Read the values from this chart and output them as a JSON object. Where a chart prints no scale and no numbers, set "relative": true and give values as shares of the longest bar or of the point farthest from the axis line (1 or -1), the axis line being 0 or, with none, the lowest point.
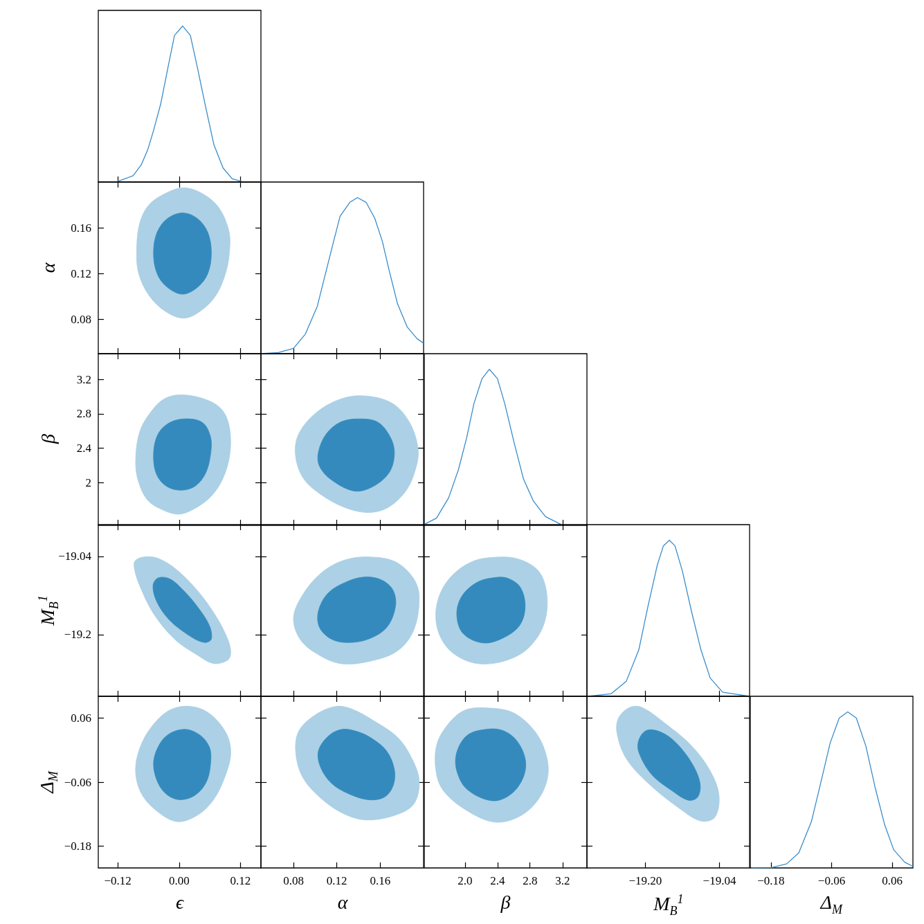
{
  "chart_data": [
    {
      "type": "line",
      "relative": true,
      "tick_labels": false,
      "color": "#388ccb",
      "xlim": [
        -0.158,
        0.16
      ],
      "xticks": [
        -0.12,
        0,
        0.12
      ],
      "x": [
        -0.12,
        -0.09,
        -0.074,
        -0.061,
        -0.05,
        -0.036,
        -0.022,
        -0.009,
        0.007,
        0.022,
        0.036,
        0.052,
        0.068,
        0.086,
        0.104,
        0.122
      ],
      "values": [
        0.004,
        0.04,
        0.11,
        0.21,
        0.33,
        0.5,
        0.73,
        0.94,
        1,
        0.94,
        0.73,
        0.48,
        0.24,
        0.09,
        0.02,
        0.004
      ]
    },
    {
      "type": "area",
      "tick_labels": "y",
      "ylabel": "α",
      "xlim": [
        -0.158,
        0.16
      ],
      "xticks": [
        -0.12,
        0,
        0.12
      ],
      "ylim": [
        0.05,
        0.2
      ],
      "yticks": [
        0.08,
        0.12,
        0.16
      ],
      "series": [
        {
          "color": "#acd0e5",
          "x": [
            0.009,
            -0.027,
            -0.059,
            -0.077,
            -0.083,
            -0.079,
            -0.059,
            -0.027,
            0.009,
            0.041,
            0.072,
            0.092,
            0.099,
            0.097,
            0.077,
            0.045
          ],
          "values": [
            0.195,
            0.19,
            0.18,
            0.164,
            0.14,
            0.12,
            0.101,
            0.087,
            0.081,
            0.087,
            0.101,
            0.122,
            0.142,
            0.158,
            0.178,
            0.19
          ]
        },
        {
          "color": "#348abd",
          "x": [
            0.007,
            -0.023,
            -0.043,
            -0.05,
            -0.043,
            -0.023,
            0.007,
            0.036,
            0.056,
            0.063,
            0.056,
            0.036
          ],
          "values": [
            0.173,
            0.168,
            0.156,
            0.138,
            0.12,
            0.108,
            0.102,
            0.108,
            0.12,
            0.138,
            0.156,
            0.168
          ]
        }
      ]
    },
    {
      "type": "line",
      "relative": true,
      "tick_labels": false,
      "color": "#388ccb",
      "xlim": [
        0.05,
        0.2
      ],
      "xticks": [
        0.08,
        0.12,
        0.16
      ],
      "x": [
        0.05,
        0.066,
        0.08,
        0.091,
        0.102,
        0.11,
        0.117,
        0.123,
        0.132,
        0.139,
        0.147,
        0.155,
        0.162,
        0.168,
        0.176,
        0.185,
        0.194,
        0.2
      ],
      "values": [
        0,
        0.007,
        0.034,
        0.126,
        0.304,
        0.526,
        0.719,
        0.881,
        0.97,
        1,
        0.97,
        0.867,
        0.719,
        0.541,
        0.319,
        0.17,
        0.096,
        0.067
      ]
    },
    {
      "type": "area",
      "tick_labels": "y",
      "ylabel": "β",
      "xlim": [
        -0.158,
        0.16
      ],
      "xticks": [
        -0.12,
        0,
        0.12
      ],
      "ylim": [
        1.5,
        3.5
      ],
      "yticks": [
        2,
        2.4,
        2.8,
        3.2
      ],
      "series": [
        {
          "color": "#acd0e5",
          "x": [
            0.009,
            -0.027,
            -0.054,
            -0.077,
            -0.085,
            -0.079,
            -0.061,
            -0.032,
            0,
            0.032,
            0.063,
            0.086,
            0.099,
            0.099,
            0.086,
            0.059
          ],
          "values": [
            3.02,
            2.98,
            2.83,
            2.59,
            2.24,
            2.0,
            1.79,
            1.68,
            1.63,
            1.7,
            1.84,
            2.05,
            2.32,
            2.62,
            2.83,
            2.95
          ]
        },
        {
          "color": "#348abd",
          "x": [
            0.009,
            -0.023,
            -0.043,
            -0.05,
            -0.043,
            -0.023,
            0.005,
            0.032,
            0.052,
            0.062,
            0.061,
            0.045
          ],
          "values": [
            2.74,
            2.68,
            2.54,
            2.3,
            2.08,
            1.95,
            1.91,
            1.96,
            2.11,
            2.35,
            2.54,
            2.7
          ]
        }
      ]
    },
    {
      "type": "area",
      "tick_labels": false,
      "xlim": [
        0.05,
        0.2
      ],
      "xticks": [
        0.08,
        0.12,
        0.16
      ],
      "ylim": [
        1.5,
        3.5
      ],
      "yticks": [
        2,
        2.4,
        2.8,
        3.2
      ],
      "series": [
        {
          "color": "#acd0e5",
          "x": [
            0.142,
            0.119,
            0.098,
            0.084,
            0.082,
            0.089,
            0.104,
            0.125,
            0.147,
            0.166,
            0.183,
            0.192,
            0.195,
            0.187,
            0.17
          ],
          "values": [
            3.01,
            2.95,
            2.78,
            2.54,
            2.3,
            2.05,
            1.87,
            1.72,
            1.65,
            1.7,
            1.89,
            2.13,
            2.38,
            2.7,
            2.93
          ]
        },
        {
          "color": "#348abd",
          "x": [
            0.14,
            0.123,
            0.11,
            0.103,
            0.104,
            0.115,
            0.136,
            0.153,
            0.168,
            0.173,
            0.17,
            0.158
          ],
          "values": [
            2.74,
            2.7,
            2.56,
            2.35,
            2.19,
            2.03,
            1.9,
            1.95,
            2.11,
            2.32,
            2.51,
            2.7
          ]
        }
      ]
    },
    {
      "type": "line",
      "relative": true,
      "tick_labels": false,
      "color": "#388ccb",
      "xlim": [
        1.5,
        3.5
      ],
      "xticks": [
        2,
        2.4,
        2.8,
        3.2
      ],
      "x": [
        1.5,
        1.65,
        1.8,
        1.92,
        2.02,
        2.11,
        2.21,
        2.3,
        2.4,
        2.49,
        2.61,
        2.72,
        2.84,
        2.99,
        3.18
      ],
      "values": [
        0.006,
        0.046,
        0.177,
        0.357,
        0.558,
        0.779,
        0.94,
        1,
        0.94,
        0.779,
        0.518,
        0.297,
        0.157,
        0.056,
        0.006
      ]
    },
    {
      "type": "area",
      "tick_labels": "y",
      "ylabel": "M$_{B}$$^{1}$",
      "xlim": [
        -0.158,
        0.16
      ],
      "xticks": [
        -0.12,
        0,
        0.12
      ],
      "ylim": [
        -19.326,
        -18.975
      ],
      "yticks": [
        {
          "value": -19.04,
          "label": "−19.04"
        },
        {
          "value": -19.2,
          "label": "−19.2"
        }
      ],
      "series": [
        {
          "color": "#acd0e5",
          "x": [
            -0.086,
            -0.068,
            -0.041,
            -0.005,
            0.036,
            0.072,
            0.095,
            0.101,
            0.095,
            0.068,
            0.036,
            -0.009,
            -0.05,
            -0.077,
            -0.087
          ],
          "values": [
            -19.049,
            -19.041,
            -19.044,
            -19.067,
            -19.11,
            -19.162,
            -19.209,
            -19.237,
            -19.252,
            -19.259,
            -19.242,
            -19.209,
            -19.157,
            -19.1,
            -19.067
          ]
        },
        {
          "color": "#348abd",
          "x": [
            -0.041,
            -0.018,
            0.009,
            0.036,
            0.059,
            0.063,
            0.05,
            0.023,
            -0.018,
            -0.043,
            -0.051
          ],
          "values": [
            -19.084,
            -19.086,
            -19.11,
            -19.143,
            -19.181,
            -19.209,
            -19.216,
            -19.204,
            -19.171,
            -19.134,
            -19.1
          ]
        }
      ]
    },
    {
      "type": "area",
      "tick_labels": false,
      "xlim": [
        0.05,
        0.2
      ],
      "xticks": [
        0.08,
        0.12,
        0.16
      ],
      "ylim": [
        -19.326,
        -18.975
      ],
      "yticks": [
        -19.04,
        -19.2
      ],
      "series": [
        {
          "color": "#acd0e5",
          "x": [
            0.149,
            0.125,
            0.104,
            0.087,
            0.08,
            0.086,
            0.1,
            0.123,
            0.151,
            0.176,
            0.191,
            0.196,
            0.191,
            0.174
          ],
          "values": [
            -19.041,
            -19.049,
            -19.077,
            -19.124,
            -19.167,
            -19.209,
            -19.237,
            -19.259,
            -19.254,
            -19.233,
            -19.19,
            -19.124,
            -19.086,
            -19.051
          ]
        },
        {
          "color": "#348abd",
          "x": [
            0.147,
            0.13,
            0.112,
            0.103,
            0.104,
            0.115,
            0.13,
            0.149,
            0.166,
            0.174,
            0.172,
            0.162
          ],
          "values": [
            -19.082,
            -19.091,
            -19.115,
            -19.152,
            -19.185,
            -19.209,
            -19.216,
            -19.209,
            -19.185,
            -19.143,
            -19.11,
            -19.089
          ]
        }
      ]
    },
    {
      "type": "area",
      "tick_labels": false,
      "xlim": [
        1.5,
        3.5
      ],
      "xticks": [
        2,
        2.4,
        2.8,
        3.2
      ],
      "ylim": [
        -19.326,
        -18.975
      ],
      "yticks": [
        -19.04,
        -19.2
      ],
      "series": [
        {
          "color": "#acd0e5",
          "x": [
            2.34,
            2.07,
            1.82,
            1.67,
            1.65,
            1.77,
            2.0,
            2.26,
            2.57,
            2.8,
            2.97,
            3.01,
            2.91,
            2.65
          ],
          "values": [
            -19.042,
            -19.052,
            -19.083,
            -19.128,
            -19.179,
            -19.224,
            -19.252,
            -19.26,
            -19.249,
            -19.224,
            -19.179,
            -19.122,
            -19.071,
            -19.045
          ]
        },
        {
          "color": "#348abd",
          "x": [
            2.38,
            2.15,
            1.96,
            1.9,
            1.98,
            2.23,
            2.49,
            2.68,
            2.74,
            2.68,
            2.53
          ],
          "values": [
            -19.083,
            -19.093,
            -19.122,
            -19.16,
            -19.198,
            -19.217,
            -19.205,
            -19.179,
            -19.141,
            -19.103,
            -19.085
          ]
        }
      ]
    },
    {
      "type": "line",
      "relative": true,
      "tick_labels": false,
      "color": "#388ccb",
      "xlim": [
        -19.326,
        -18.975
      ],
      "xticks": [
        -19.2,
        -19.04
      ],
      "x": [
        -19.324,
        -19.274,
        -19.241,
        -19.214,
        -19.194,
        -19.174,
        -19.161,
        -19.148,
        -19.136,
        -19.12,
        -19.1,
        -19.08,
        -19.06,
        -19.033,
        -18.975
      ],
      "values": [
        0,
        0.016,
        0.097,
        0.298,
        0.58,
        0.843,
        0.964,
        1,
        0.964,
        0.802,
        0.54,
        0.298,
        0.117,
        0.026,
        0
      ]
    },
    {
      "type": "area",
      "xlabel": "ϵ",
      "ylabel": "Δ$_{M}$",
      "xlim": [
        -0.158,
        0.16
      ],
      "xticks": [
        {
          "value": -0.12,
          "label": "−0.12"
        },
        {
          "value": 0,
          "label": "0.00"
        },
        {
          "value": 0.12,
          "label": "0.12"
        }
      ],
      "ylim": [
        -0.221,
        0.101
      ],
      "yticks": [
        0.06,
        {
          "value": -0.06,
          "label": "−0.06"
        },
        {
          "value": -0.18,
          "label": "−0.18"
        }
      ],
      "series": [
        {
          "color": "#acd0e5",
          "x": [
            0.023,
            -0.014,
            -0.045,
            -0.072,
            -0.085,
            -0.077,
            -0.05,
            -0.005,
            0.036,
            0.068,
            0.09,
            0.101,
            0.092,
            0.059
          ],
          "values": [
            0.082,
            0.077,
            0.054,
            0.015,
            -0.032,
            -0.075,
            -0.109,
            -0.134,
            -0.122,
            -0.092,
            -0.049,
            -0.006,
            0.032,
            0.069
          ]
        },
        {
          "color": "#348abd",
          "x": [
            0.011,
            -0.023,
            -0.043,
            -0.05,
            -0.041,
            -0.023,
            0.002,
            0.032,
            0.054,
            0.062,
            0.059,
            0.041
          ],
          "values": [
            0.039,
            0.028,
            0.002,
            -0.028,
            -0.062,
            -0.084,
            -0.093,
            -0.084,
            -0.058,
            -0.019,
            0.006,
            0.028
          ]
        }
      ]
    },
    {
      "type": "area",
      "tick_labels": "x",
      "xlabel": "α",
      "xlim": [
        0.05,
        0.2
      ],
      "xticks": [
        0.08,
        0.12,
        0.16
      ],
      "ylim": [
        -0.221,
        0.101
      ],
      "yticks": [
        0.06,
        -0.06,
        -0.18
      ],
      "series": [
        {
          "color": "#acd0e5",
          "x": [
            0.119,
            0.1,
            0.085,
            0.082,
            0.088,
            0.104,
            0.125,
            0.147,
            0.174,
            0.191,
            0.196,
            0.189,
            0.176,
            0.155,
            0.134
          ],
          "values": [
            0.082,
            0.066,
            0.036,
            -0.002,
            -0.049,
            -0.088,
            -0.118,
            -0.131,
            -0.122,
            -0.101,
            -0.058,
            -0.015,
            0.024,
            0.054,
            0.077
          ]
        },
        {
          "color": "#348abd",
          "x": [
            0.125,
            0.112,
            0.103,
            0.105,
            0.115,
            0.13,
            0.149,
            0.164,
            0.172,
            0.173,
            0.166,
            0.153,
            0.14
          ],
          "values": [
            0.039,
            0.026,
            -0.002,
            -0.032,
            -0.062,
            -0.081,
            -0.093,
            -0.088,
            -0.066,
            -0.036,
            -0.002,
            0.021,
            0.034
          ]
        }
      ]
    },
    {
      "type": "area",
      "tick_labels": "x",
      "xlabel": "β",
      "xlim": [
        1.5,
        3.5
      ],
      "xticks": [
        {
          "value": 2,
          "label": "2.0"
        },
        2.4,
        2.8,
        3.2
      ],
      "ylim": [
        -0.221,
        0.101
      ],
      "yticks": [
        0.06,
        -0.06,
        -0.18
      ],
      "series": [
        {
          "color": "#acd0e5",
          "x": [
            2.3,
            2.0,
            1.79,
            1.65,
            1.65,
            1.75,
            2.03,
            2.36,
            2.65,
            2.88,
            3.01,
            3.01,
            2.88,
            2.61
          ],
          "values": [
            0.079,
            0.075,
            0.048,
            0.008,
            -0.045,
            -0.079,
            -0.114,
            -0.135,
            -0.126,
            -0.097,
            -0.056,
            -0.016,
            0.031,
            0.069
          ]
        },
        {
          "color": "#348abd",
          "x": [
            2.26,
            2.03,
            1.9,
            1.9,
            2.03,
            2.34,
            2.57,
            2.72,
            2.74,
            2.63,
            2.46
          ],
          "values": [
            0.039,
            0.028,
            -0.004,
            -0.039,
            -0.074,
            -0.095,
            -0.082,
            -0.05,
            -0.016,
            0.019,
            0.037
          ]
        }
      ]
    },
    {
      "type": "area",
      "tick_labels": "x",
      "xlabel": "M$_{B}$$^{1}$",
      "xlim": [
        -19.326,
        -18.975
      ],
      "xticks": [
        {
          "value": -19.2,
          "label": "−19.20"
        },
        {
          "value": -19.04,
          "label": "−19.04"
        }
      ],
      "ylim": [
        -0.221,
        0.101
      ],
      "yticks": [
        0.06,
        -0.06,
        -0.18
      ],
      "series": [
        {
          "color": "#acd0e5",
          "x": [
            -19.234,
            -19.258,
            -19.261,
            -19.241,
            -19.194,
            -19.127,
            -19.08,
            -19.05,
            -19.041,
            -19.06,
            -19.1,
            -19.154,
            -19.207
          ],
          "values": [
            0.08,
            0.06,
            0.031,
            -0.016,
            -0.062,
            -0.109,
            -0.133,
            -0.126,
            -0.085,
            -0.039,
            0.008,
            0.048,
            0.08
          ]
        },
        {
          "color": "#348abd",
          "x": [
            -19.197,
            -19.214,
            -19.214,
            -19.187,
            -19.141,
            -19.107,
            -19.087,
            -19.082,
            -19.1,
            -19.134,
            -19.167
          ],
          "values": [
            0.037,
            0.019,
            -0.004,
            -0.045,
            -0.077,
            -0.094,
            -0.088,
            -0.062,
            -0.024,
            0.014,
            0.034
          ]
        }
      ]
    },
    {
      "type": "line",
      "relative": true,
      "tick_labels": "x",
      "xlabel": "Δ$_{M}$",
      "color": "#388ccb",
      "xlim": [
        -0.221,
        0.101
      ],
      "xticks": [
        {
          "value": -0.18,
          "label": "−0.18"
        },
        {
          "value": -0.06,
          "label": "−0.06"
        },
        0.06
      ],
      "x": [
        -0.219,
        -0.18,
        -0.149,
        -0.125,
        -0.1,
        -0.082,
        -0.063,
        -0.045,
        -0.028,
        -0.011,
        0.008,
        0.026,
        0.045,
        0.063,
        0.085,
        0.101
      ],
      "values": [
        0,
        0.002,
        0.026,
        0.096,
        0.297,
        0.538,
        0.799,
        0.96,
        1,
        0.96,
        0.779,
        0.518,
        0.277,
        0.116,
        0.036,
        0.01
      ]
    }
  ]
}
